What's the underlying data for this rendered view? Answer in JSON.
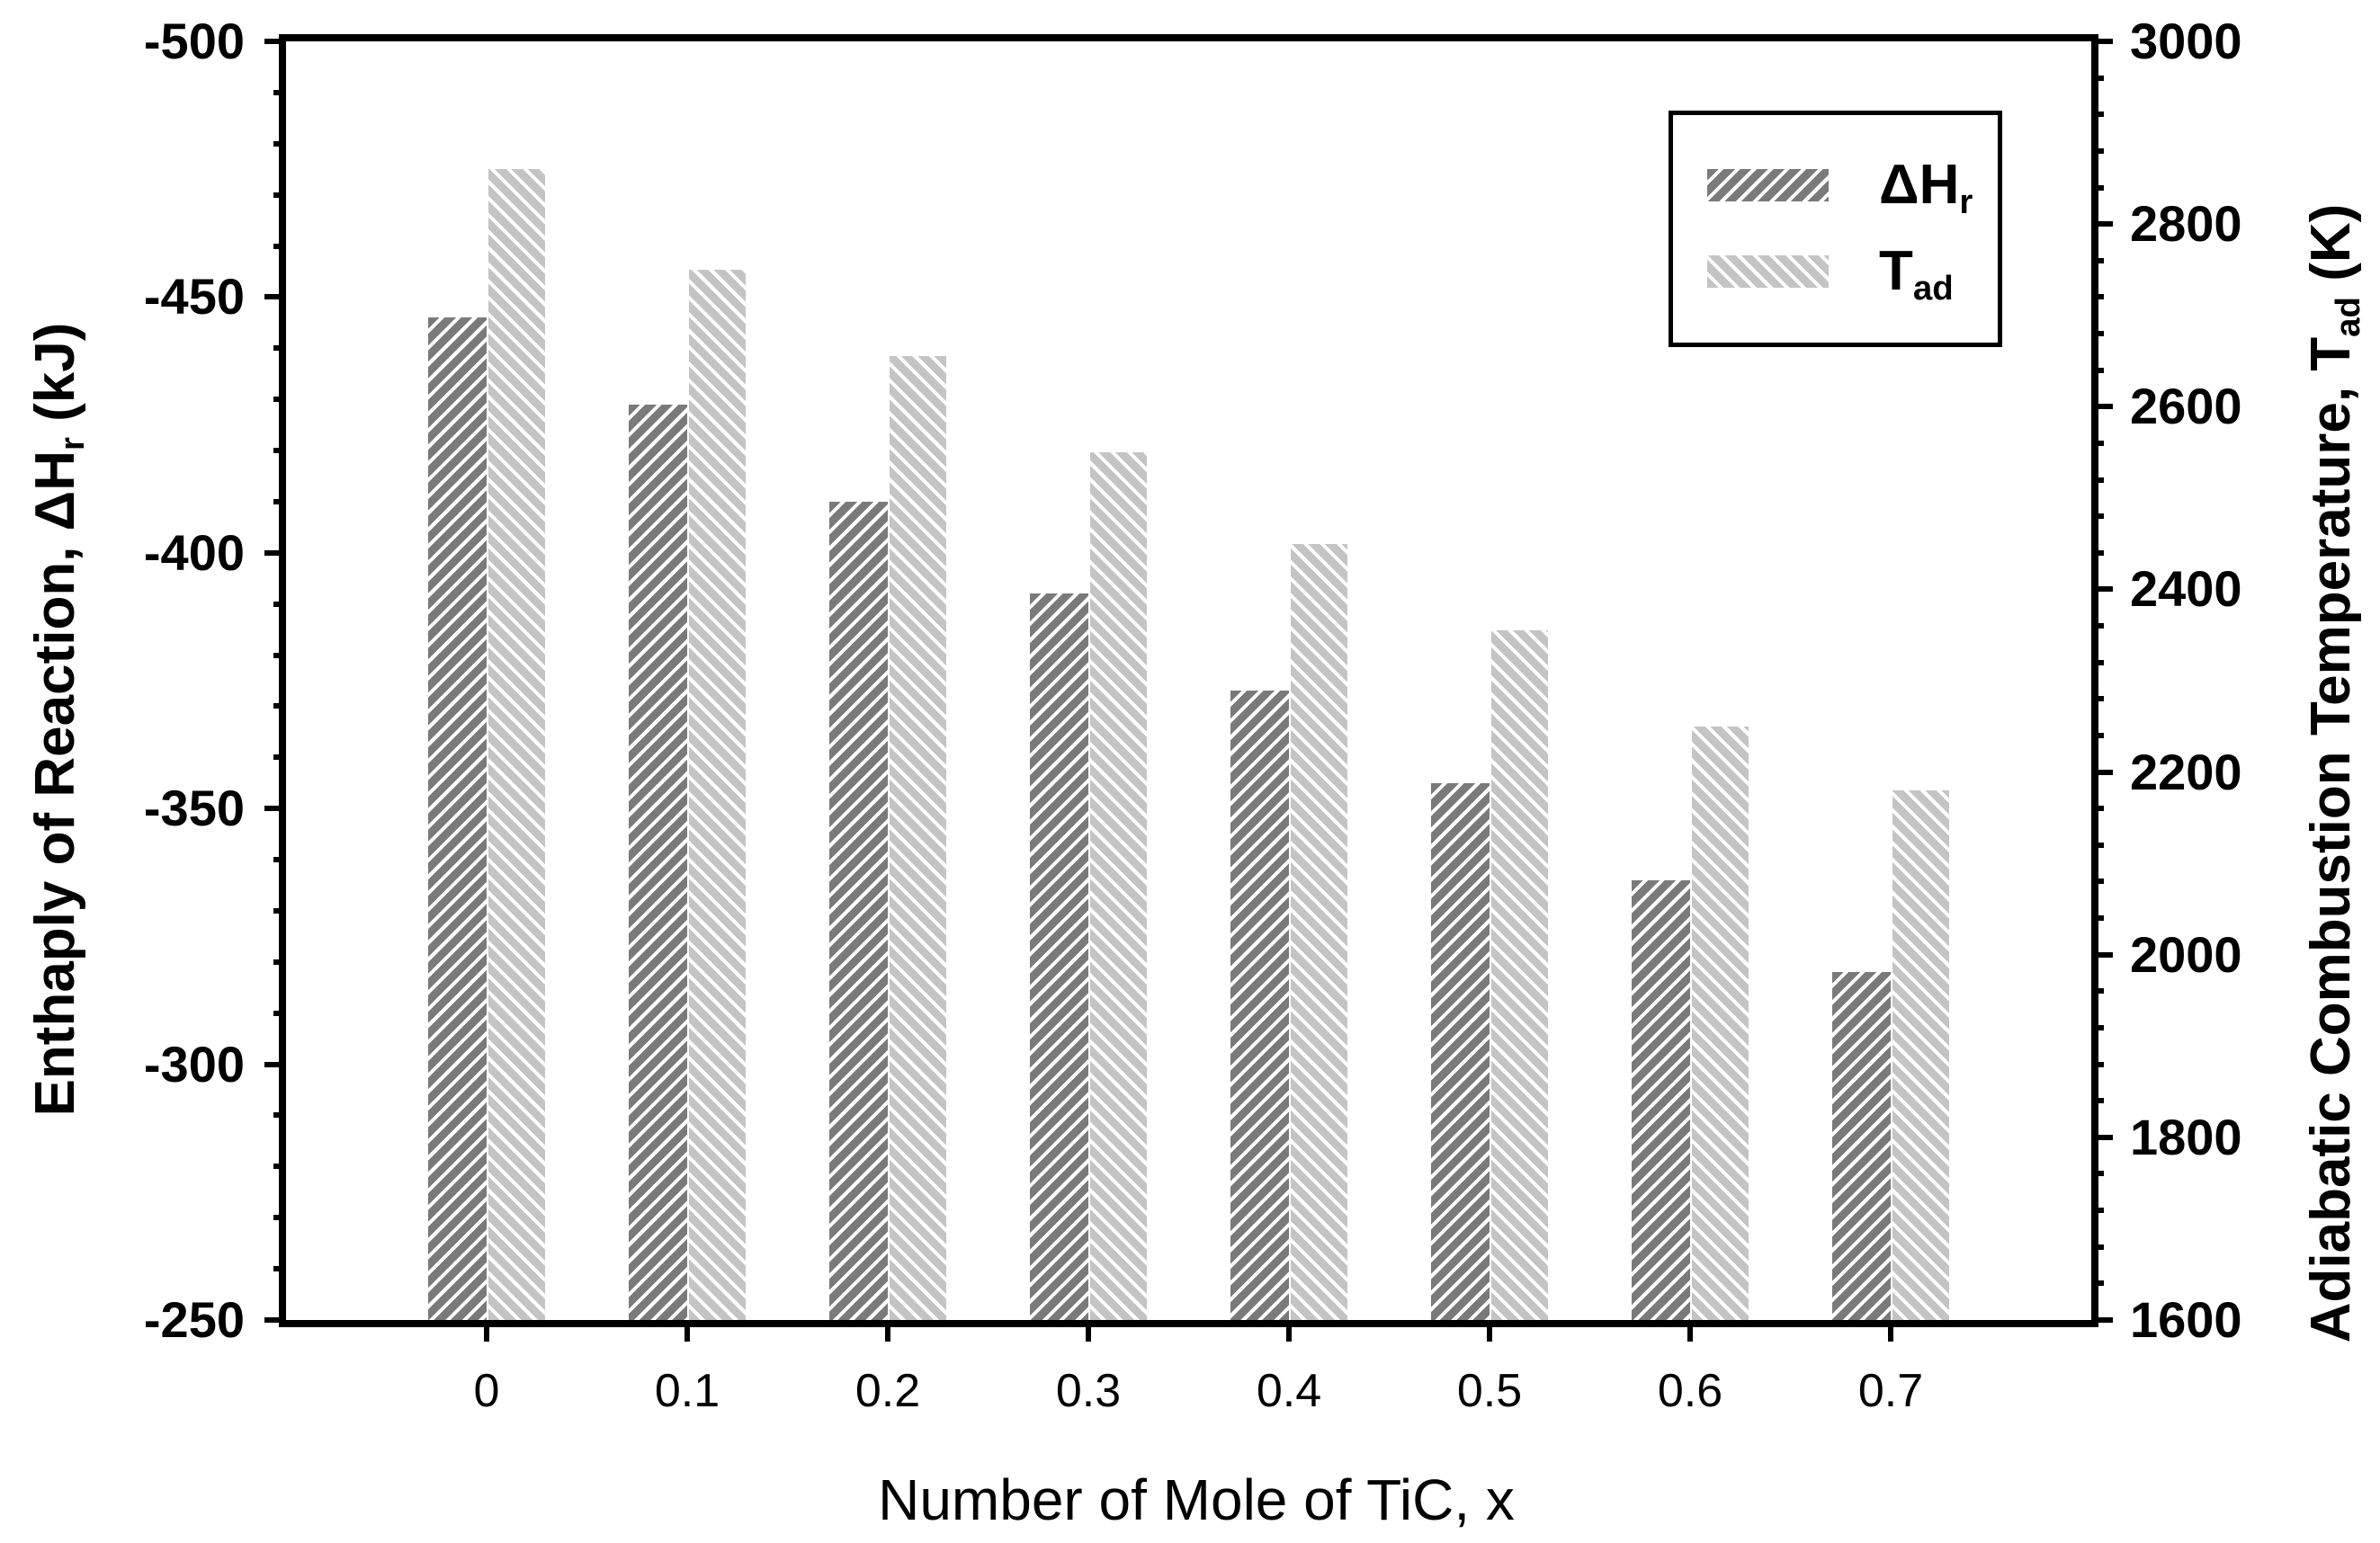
{
  "chart_data": {
    "type": "bar",
    "title": "",
    "categories": [
      "0",
      "0.1",
      "0.2",
      "0.3",
      "0.4",
      "0.5",
      "0.6",
      "0.7"
    ],
    "series": [
      {
        "name": "dHr",
        "label_main": "ΔH",
        "label_sub": "r",
        "axis": "left",
        "color": "#7a7a7a",
        "hatch": "forward-diagonal",
        "values": [
          -446,
          -429,
          -410,
          -392,
          -373,
          -355,
          -336,
          -318
        ]
      },
      {
        "name": "Tad",
        "label_main": "T",
        "label_sub": "ad",
        "axis": "right",
        "color": "#c4c4c4",
        "hatch": "back-diagonal",
        "values": [
          2860,
          2750,
          2655,
          2550,
          2450,
          2355,
          2250,
          2180
        ]
      }
    ],
    "left_axis": {
      "title_pre": "Enthaply of Reaction, ΔH",
      "title_sub": "r",
      "title_post": " (kJ)",
      "top": -500,
      "bottom": -250,
      "major_step": 50,
      "minor_step": 10,
      "tick_labels": [
        "-500",
        "-450",
        "-400",
        "-350",
        "-300",
        "-250"
      ]
    },
    "right_axis": {
      "title_pre": "Adiabatic Combustion Temperature, T",
      "title_sub": "ad",
      "title_post": " (K)",
      "top": 3000,
      "bottom": 1600,
      "major_step": 200,
      "minor_step": 40,
      "tick_labels": [
        "3000",
        "2800",
        "2600",
        "2400",
        "2200",
        "2000",
        "1800",
        "1600"
      ]
    },
    "x_axis": {
      "title": "Number of Mole of TiC, x",
      "tick_labels": [
        "0",
        "0.1",
        "0.2",
        "0.3",
        "0.4",
        "0.5",
        "0.6",
        "0.7"
      ]
    },
    "legend": {
      "position": "top-right",
      "entries": [
        {
          "label_main": "ΔH",
          "label_sub": "r",
          "series": 0
        },
        {
          "label_main": "T",
          "label_sub": "ad",
          "series": 1
        }
      ]
    },
    "grid": "off",
    "frame": "box",
    "background": "#ffffff",
    "colors": {
      "bar_dark": "#7a7a7a",
      "bar_light": "#c4c4c4",
      "axis": "#000000"
    }
  }
}
